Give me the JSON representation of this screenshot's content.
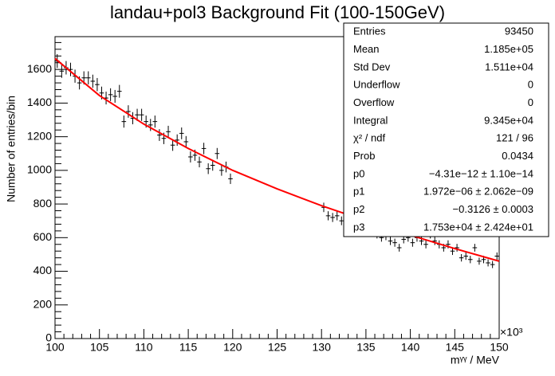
{
  "chart_data": {
    "type": "histogram-fit",
    "title": "landau+pol3 Background Fit (100-150GeV)",
    "x_label": "mᵞᵞ / MeV",
    "y_label": "Number of entries/bin",
    "x_exponent": "×10³",
    "xlim": [
      100,
      150
    ],
    "ylim": [
      0,
      1795
    ],
    "xticks": [
      100,
      105,
      110,
      115,
      120,
      125,
      130,
      135,
      140,
      145,
      150
    ],
    "yticks": [
      0,
      200,
      400,
      600,
      800,
      1000,
      1200,
      1400,
      1600
    ],
    "x": [
      100.25,
      100.75,
      101.25,
      101.75,
      102.25,
      102.75,
      103.25,
      103.75,
      104.25,
      104.75,
      105.25,
      105.75,
      106.25,
      106.75,
      107.25,
      107.75,
      108.25,
      108.75,
      109.25,
      109.75,
      110.25,
      110.75,
      111.25,
      111.75,
      112.25,
      112.75,
      113.25,
      113.75,
      114.25,
      114.75,
      115.25,
      115.75,
      116.25,
      116.75,
      117.25,
      117.75,
      118.25,
      118.75,
      119.25,
      119.75,
      130.25,
      130.75,
      131.25,
      131.75,
      132.25,
      132.75,
      133.25,
      133.75,
      134.25,
      134.75,
      135.25,
      135.75,
      136.25,
      136.75,
      137.25,
      137.75,
      138.25,
      138.75,
      139.25,
      139.75,
      140.25,
      140.75,
      141.25,
      141.75,
      142.25,
      142.75,
      143.25,
      143.75,
      144.25,
      144.75,
      145.25,
      145.75,
      146.25,
      146.75,
      147.25,
      147.75,
      148.25,
      148.75,
      149.25,
      149.75
    ],
    "series": [
      {
        "name": "data",
        "color": "#000000",
        "values": [
          1650,
          1590,
          1610,
          1600,
          1560,
          1520,
          1550,
          1550,
          1530,
          1510,
          1460,
          1430,
          1450,
          1440,
          1470,
          1290,
          1350,
          1310,
          1330,
          1330,
          1290,
          1270,
          1290,
          1210,
          1190,
          1230,
          1150,
          1180,
          1220,
          1170,
          1080,
          1090,
          1050,
          1130,
          1010,
          1030,
          1100,
          1000,
          1020,
          950,
          780,
          730,
          720,
          730,
          700,
          690,
          740,
          680,
          690,
          660,
          650,
          640,
          620,
          600,
          610,
          580,
          570,
          540,
          590,
          600,
          570,
          600,
          580,
          560,
          620,
          580,
          560,
          540,
          560,
          520,
          540,
          480,
          490,
          470,
          540,
          460,
          470,
          450,
          440,
          490
        ],
        "errors": [
          41,
          40,
          40,
          40,
          39,
          39,
          39,
          39,
          39,
          39,
          38,
          38,
          38,
          38,
          38,
          36,
          37,
          36,
          36,
          36,
          36,
          36,
          36,
          35,
          34,
          35,
          34,
          34,
          35,
          34,
          33,
          33,
          32,
          34,
          32,
          32,
          33,
          32,
          32,
          31,
          28,
          27,
          27,
          27,
          26,
          26,
          27,
          26,
          26,
          26,
          25,
          25,
          25,
          24,
          25,
          24,
          24,
          23,
          24,
          24,
          24,
          24,
          24,
          24,
          25,
          24,
          24,
          23,
          24,
          23,
          23,
          22,
          22,
          22,
          23,
          21,
          22,
          21,
          21,
          22
        ]
      },
      {
        "name": "fit",
        "color": "#ff0000",
        "x": [
          100,
          105,
          110,
          115,
          120,
          125,
          130,
          135,
          140,
          145,
          150
        ],
        "values": [
          1665,
          1445,
          1275,
          1130,
          1000,
          890,
          790,
          700,
          615,
          535,
          460
        ]
      }
    ],
    "stats": [
      [
        "Entries",
        "93450"
      ],
      [
        "Mean",
        "1.185e+05"
      ],
      [
        "Std Dev",
        "1.511e+04"
      ],
      [
        "Underflow",
        "0"
      ],
      [
        "Overflow",
        "0"
      ],
      [
        "Integral",
        "9.345e+04"
      ],
      [
        "χ² / ndf",
        "121 / 96"
      ],
      [
        "Prob",
        "0.0434"
      ],
      [
        "p0",
        "−4.31e−12 ± 1.10e−14"
      ],
      [
        "p1",
        "1.972e−06 ± 2.062e−09"
      ],
      [
        "p2",
        "−0.3126 ± 0.0003"
      ],
      [
        "p3",
        "1.753e+04 ± 2.424e+01"
      ]
    ]
  }
}
